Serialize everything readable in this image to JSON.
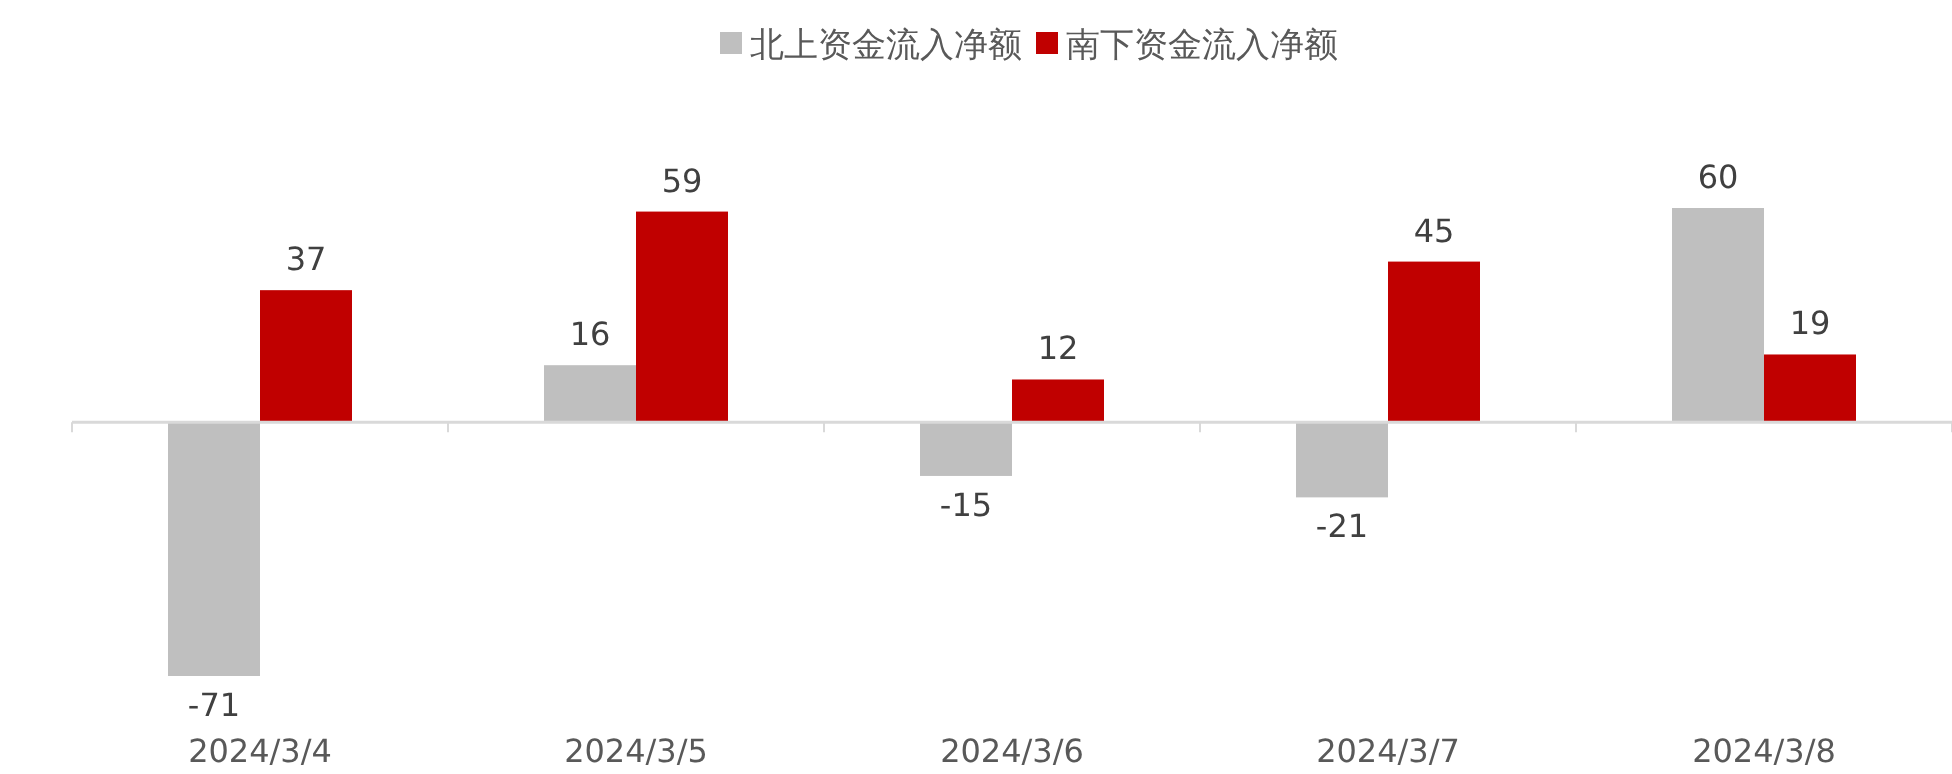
{
  "chart_data": {
    "type": "bar",
    "categories": [
      "2024/3/4",
      "2024/3/5",
      "2024/3/6",
      "2024/3/7",
      "2024/3/8"
    ],
    "series": [
      {
        "name": "北上资金流入净额",
        "color": "#bfbfbf",
        "values": [
          -71,
          16,
          -15,
          -21,
          60
        ]
      },
      {
        "name": "南下资金流入净额",
        "color": "#c00000",
        "values": [
          37,
          59,
          12,
          45,
          19
        ]
      }
    ],
    "data_labels": true,
    "legend": "top"
  }
}
